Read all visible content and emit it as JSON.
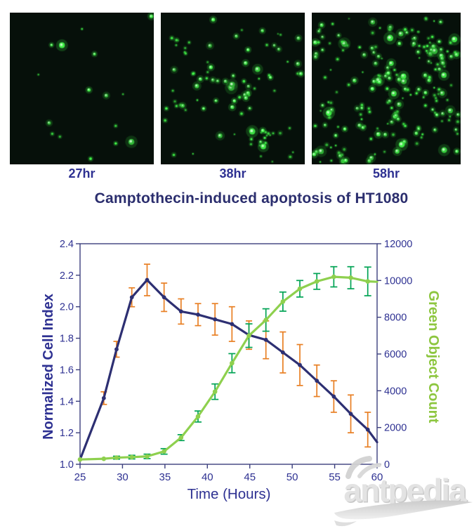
{
  "page": {
    "background": "#ffffff"
  },
  "microscopy": {
    "background": "#06100a",
    "images": [
      {
        "label": "27hr",
        "dot_count": 16,
        "clusters": 0,
        "seed": 27
      },
      {
        "label": "38hr",
        "dot_count": 95,
        "clusters": 10,
        "seed": 38
      },
      {
        "label": "58hr",
        "dot_count": 215,
        "clusters": 26,
        "seed": 58
      }
    ]
  },
  "chart_data": {
    "type": "line",
    "title": "Camptothecin-induced apoptosis of HT1080",
    "xlabel": "Time (Hours)",
    "xlim": [
      25,
      60
    ],
    "x_ticks": [
      25,
      30,
      35,
      40,
      45,
      50,
      55,
      60
    ],
    "grid": false,
    "legend": "none",
    "left_axis": {
      "label": "Normalized Cell Index",
      "lim": [
        1.0,
        2.4
      ],
      "ticks": [
        1.0,
        1.2,
        1.4,
        1.6,
        1.8,
        2.0,
        2.2,
        2.4
      ],
      "label_color": "#2e3192",
      "tick_color": "#2e3192"
    },
    "right_axis": {
      "label": "Green Object Count",
      "lim": [
        0,
        12000
      ],
      "ticks": [
        0,
        2000,
        4000,
        6000,
        8000,
        10000,
        12000
      ],
      "label_color": "#8dc63f",
      "tick_color": "#2e3192"
    },
    "axis_color": "#3c3f7e",
    "series": [
      {
        "name": "Normalized Cell Index",
        "axis": "left",
        "color": "#2d2f72",
        "error_color": "#e87f23",
        "x": [
          25,
          27.8,
          29.3,
          31.1,
          32.9,
          34.9,
          36.9,
          38.9,
          40.9,
          42.9,
          44.9,
          46.9,
          48.9,
          50.9,
          52.9,
          54.9,
          56.9,
          58.9,
          60
        ],
        "y": [
          1.03,
          1.42,
          1.73,
          2.06,
          2.17,
          2.06,
          1.97,
          1.95,
          1.92,
          1.89,
          1.82,
          1.79,
          1.71,
          1.63,
          1.53,
          1.43,
          1.32,
          1.22,
          1.14
        ],
        "err": [
          0,
          0.04,
          0.05,
          0.06,
          0.1,
          0.09,
          0.08,
          0.07,
          0.1,
          0.11,
          0.09,
          0.12,
          0.13,
          0.13,
          0.1,
          0.1,
          0.12,
          0.11,
          0
        ]
      },
      {
        "name": "Green Object Count",
        "axis": "right",
        "color": "#8ed04e",
        "error_color": "#00a354",
        "x": [
          25,
          27.8,
          29.3,
          31.1,
          32.9,
          34.9,
          36.9,
          38.9,
          40.9,
          42.9,
          44.9,
          46.9,
          48.9,
          50.9,
          52.9,
          54.9,
          56.9,
          58.9,
          60
        ],
        "y": [
          260,
          300,
          360,
          390,
          430,
          700,
          1450,
          2600,
          3950,
          5500,
          7000,
          7850,
          8850,
          9550,
          9950,
          10200,
          10150,
          9950,
          9930
        ],
        "err": [
          0,
          0,
          80,
          100,
          120,
          150,
          160,
          300,
          420,
          520,
          640,
          610,
          520,
          450,
          430,
          550,
          600,
          780,
          0
        ]
      }
    ]
  },
  "watermark": {
    "text": "antpedia"
  }
}
